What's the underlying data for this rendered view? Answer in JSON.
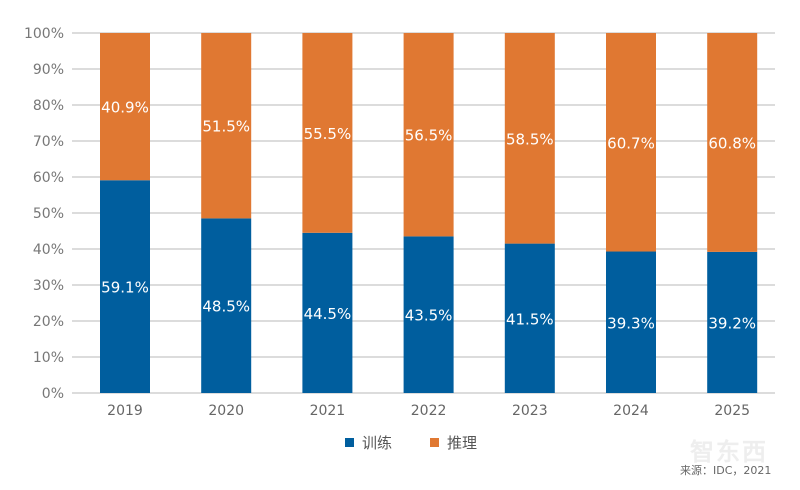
{
  "chart_data": {
    "type": "bar",
    "stacked": true,
    "categories": [
      "2019",
      "2020",
      "2021",
      "2022",
      "2023",
      "2024",
      "2025"
    ],
    "series": [
      {
        "name": "训练",
        "color": "#005e9e",
        "values": [
          59.1,
          48.5,
          44.5,
          43.5,
          41.5,
          39.3,
          39.2
        ],
        "labels": [
          "59.1%",
          "48.5%",
          "44.5%",
          "43.5%",
          "41.5%",
          "39.3%",
          "39.2%"
        ]
      },
      {
        "name": "推理",
        "color": "#e07832",
        "values": [
          40.9,
          51.5,
          55.5,
          56.5,
          58.5,
          60.7,
          60.8
        ],
        "labels": [
          "40.9%",
          "51.5%",
          "55.5%",
          "56.5%",
          "58.5%",
          "60.7%",
          "60.8%"
        ]
      }
    ],
    "yticks": [
      "0%",
      "10%",
      "20%",
      "30%",
      "40%",
      "50%",
      "60%",
      "70%",
      "80%",
      "90%",
      "100%"
    ],
    "ylim": [
      0,
      100
    ],
    "grid": true,
    "legend_position": "bottom"
  },
  "source": "来源：IDC，2021",
  "watermark": "智东西"
}
